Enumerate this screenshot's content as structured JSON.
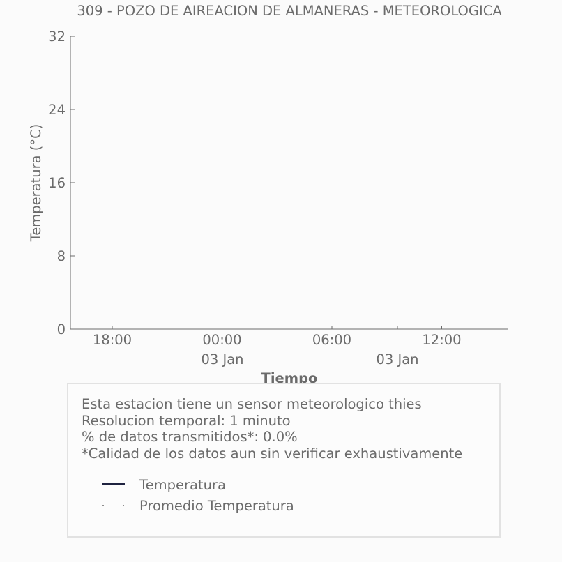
{
  "chart_data": {
    "type": "line",
    "title": "309 - POZO DE AIREACION DE ALMANERAS - METEOROLOGICA",
    "xlabel": "Tiempo",
    "ylabel": "Temperatura (°C)",
    "ylim": [
      0,
      32
    ],
    "yticks": [
      "0",
      "8",
      "16",
      "24",
      "32"
    ],
    "xticks": [
      {
        "label": "18:00",
        "sub": ""
      },
      {
        "label": "00:00",
        "sub": "03 Jan"
      },
      {
        "label": "06:00",
        "sub": ""
      },
      {
        "label": "12:00",
        "sub": ""
      }
    ],
    "xdate_labels": [
      "03 Jan",
      "03 Jan"
    ],
    "grid": false,
    "series": [
      {
        "name": "Temperatura",
        "values": []
      },
      {
        "name": "Promedio Temperatura",
        "values": []
      }
    ]
  },
  "info": {
    "lines": [
      "Esta estacion tiene un sensor meteorologico thies",
      "Resolucion temporal: 1 minuto",
      "% de datos transmitidos*: 0.0%",
      "*Calidad de los datos aun sin verificar exhaustivamente"
    ]
  },
  "legend": {
    "items": [
      "Temperatura",
      "Promedio Temperatura"
    ]
  },
  "colors": {
    "temperatura_line": "#1f2340",
    "text": "#6b6b6b",
    "axis": "#6b6b6b"
  }
}
